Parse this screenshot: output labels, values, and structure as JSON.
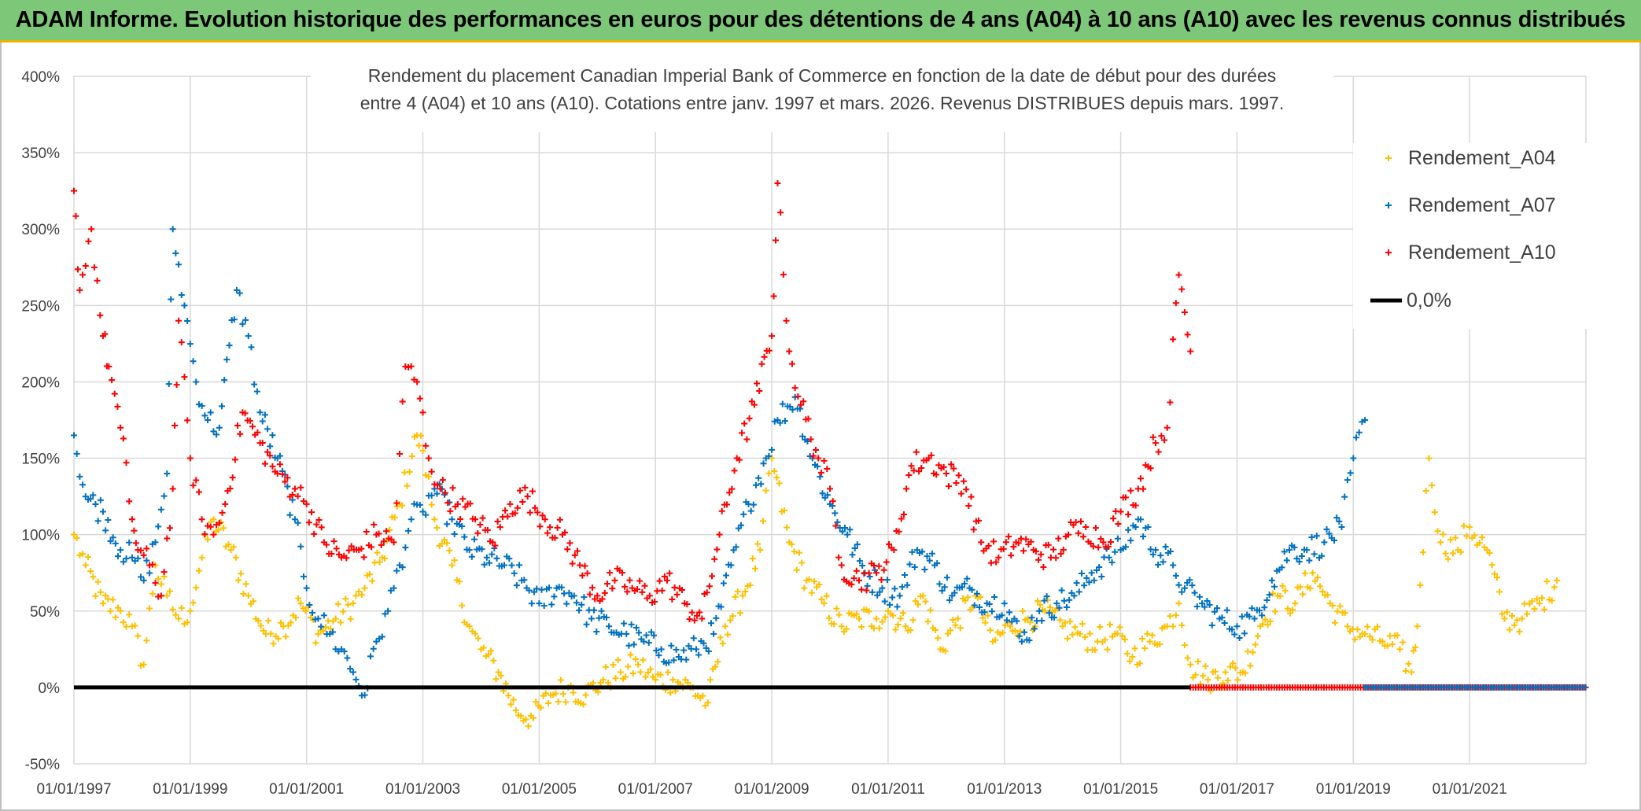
{
  "header": {
    "title": "ADAM Informe. Evolution historique des performances en euros pour des détentions de 4 ans (A04) à 10 ans (A10) avec les revenus connus distribués"
  },
  "chart_data": {
    "type": "scatter",
    "title_lines": [
      "Rendement du placement Canadian Imperial Bank of Commerce en fonction de la date de début pour des durées",
      "entre 4 (A04) et 10 ans (A10). Cotations entre janv. 1997 et mars. 2026. Revenus DISTRIBUES depuis mars. 1997."
    ],
    "xlabel": "",
    "ylabel": "",
    "x_unit": "year",
    "xlim": [
      1997.0,
      2023.0
    ],
    "ylim": [
      -50,
      400
    ],
    "x_tick_labels": [
      "01/01/1997",
      "01/01/1999",
      "01/01/2001",
      "01/01/2003",
      "01/01/2005",
      "01/01/2007",
      "01/01/2009",
      "01/01/2011",
      "01/01/2013",
      "01/01/2015",
      "01/01/2017",
      "01/01/2019",
      "01/01/2021"
    ],
    "x_tick_values": [
      1997,
      1999,
      2001,
      2003,
      2005,
      2007,
      2009,
      2011,
      2013,
      2015,
      2017,
      2019,
      2021
    ],
    "y_tick_labels": [
      "-50%",
      "0%",
      "50%",
      "100%",
      "150%",
      "200%",
      "250%",
      "300%",
      "350%",
      "400%"
    ],
    "y_tick_values": [
      -50,
      0,
      50,
      100,
      150,
      200,
      250,
      300,
      350,
      400
    ],
    "grid": true,
    "legend_position": "top-right",
    "marker": "+",
    "series": [
      {
        "name": "Rendement_A04",
        "color": "#ffc000",
        "x": [
          1997.0,
          1997.2,
          1997.5,
          1997.8,
          1998.0,
          1998.2,
          1998.4,
          1998.6,
          1998.8,
          1999.0,
          1999.2,
          1999.4,
          1999.7,
          2000.0,
          2000.3,
          2000.6,
          2000.9,
          2001.2,
          2001.5,
          2001.8,
          2002.0,
          2002.3,
          2002.6,
          2002.9,
          2003.0,
          2003.2,
          2003.5,
          2003.8,
          2004.0,
          2004.3,
          2004.6,
          2004.9,
          2005.2,
          2005.5,
          2005.8,
          2006.1,
          2006.4,
          2006.7,
          2007.0,
          2007.3,
          2007.6,
          2007.9,
          2008.2,
          2008.5,
          2008.8,
          2009.0,
          2009.3,
          2009.6,
          2009.9,
          2010.2,
          2010.5,
          2010.8,
          2011.0,
          2011.3,
          2011.6,
          2011.9,
          2012.2,
          2012.5,
          2012.8,
          2013.1,
          2013.4,
          2013.7,
          2014.0,
          2014.3,
          2014.6,
          2014.9,
          2015.2,
          2015.5,
          2015.8,
          2016.0,
          2016.2,
          2016.5,
          2016.8,
          2017.1,
          2017.4,
          2017.7,
          2018.0,
          2018.3,
          2018.6,
          2018.9,
          2019.2,
          2019.5,
          2019.8,
          2020.0,
          2020.1,
          2020.3,
          2020.5,
          2020.8,
          2021.0,
          2021.3,
          2021.6,
          2021.9,
          2022.2,
          2022.5
        ],
        "y": [
          100,
          80,
          55,
          50,
          40,
          15,
          80,
          60,
          45,
          50,
          85,
          110,
          90,
          60,
          35,
          40,
          55,
          35,
          45,
          55,
          65,
          85,
          120,
          165,
          155,
          110,
          80,
          40,
          25,
          10,
          -15,
          -20,
          -5,
          0,
          -5,
          5,
          10,
          15,
          5,
          5,
          0,
          -10,
          40,
          60,
          90,
          150,
          95,
          70,
          55,
          40,
          45,
          45,
          50,
          40,
          60,
          25,
          45,
          60,
          30,
          40,
          45,
          50,
          40,
          35,
          30,
          35,
          20,
          30,
          40,
          55,
          15,
          5,
          10,
          10,
          40,
          60,
          55,
          75,
          55,
          40,
          35,
          30,
          25,
          10,
          40,
          150,
          95,
          90,
          105,
          90,
          45,
          45,
          55,
          70
        ]
      },
      {
        "name": "Rendement_A07",
        "color": "#0070c0",
        "x": [
          1997.0,
          1997.2,
          1997.5,
          1997.8,
          1998.0,
          1998.2,
          1998.4,
          1998.6,
          1998.7,
          1998.9,
          1999.1,
          1999.3,
          1999.5,
          1999.8,
          2000.0,
          2000.2,
          2000.5,
          2000.8,
          2001.0,
          2001.2,
          2001.4,
          2001.6,
          2001.8,
          2002.0,
          2002.2,
          2002.4,
          2002.6,
          2002.8,
          2003.0,
          2003.2,
          2003.5,
          2003.8,
          2004.1,
          2004.4,
          2004.7,
          2005.0,
          2005.3,
          2005.6,
          2005.9,
          2006.2,
          2006.5,
          2006.8,
          2007.1,
          2007.4,
          2007.7,
          2008.0,
          2008.3,
          2008.6,
          2008.9,
          2009.1,
          2009.4,
          2009.7,
          2010.0,
          2010.3,
          2010.6,
          2010.9,
          2011.2,
          2011.5,
          2011.8,
          2012.1,
          2012.4,
          2012.7,
          2013.0,
          2013.3,
          2013.6,
          2013.9,
          2014.2,
          2014.5,
          2014.8,
          2015.0,
          2015.3,
          2015.6,
          2015.9,
          2016.1,
          2016.4,
          2016.7,
          2017.0,
          2017.3,
          2017.6,
          2017.9,
          2018.2,
          2018.5,
          2018.8,
          2019.0,
          2019.2
        ],
        "y": [
          165,
          125,
          115,
          90,
          85,
          70,
          95,
          140,
          300,
          250,
          200,
          175,
          170,
          260,
          230,
          180,
          150,
          110,
          65,
          45,
          35,
          25,
          10,
          -5,
          30,
          50,
          80,
          110,
          115,
          130,
          110,
          90,
          85,
          80,
          70,
          55,
          65,
          60,
          45,
          40,
          35,
          30,
          25,
          20,
          25,
          35,
          80,
          120,
          150,
          175,
          190,
          150,
          120,
          100,
          75,
          65,
          60,
          90,
          80,
          60,
          65,
          55,
          55,
          30,
          50,
          55,
          60,
          75,
          85,
          90,
          110,
          90,
          80,
          65,
          55,
          45,
          40,
          45,
          70,
          90,
          90,
          95,
          105,
          150,
          175
        ]
      },
      {
        "name": "Rendement_A10",
        "color": "#ff0000",
        "x": [
          1997.0,
          1997.1,
          1997.3,
          1997.5,
          1997.6,
          1997.8,
          1998.0,
          1998.1,
          1998.3,
          1998.5,
          1998.7,
          1998.8,
          1999.0,
          1999.2,
          1999.4,
          1999.6,
          1999.9,
          2000.2,
          2000.5,
          2000.8,
          2001.0,
          2001.3,
          2001.6,
          2001.9,
          2002.2,
          2002.5,
          2002.7,
          2002.9,
          2003.1,
          2003.3,
          2003.6,
          2003.9,
          2004.2,
          2004.5,
          2004.8,
          2005.1,
          2005.4,
          2005.7,
          2006.0,
          2006.3,
          2006.6,
          2006.9,
          2007.2,
          2007.5,
          2007.8,
          2008.1,
          2008.4,
          2008.7,
          2009.0,
          2009.1,
          2009.3,
          2009.5,
          2009.8,
          2010.0,
          2010.2,
          2010.5,
          2010.8,
          2011.1,
          2011.4,
          2011.7,
          2012.0,
          2012.3,
          2012.6,
          2012.9,
          2013.2,
          2013.5,
          2013.8,
          2014.1,
          2014.4,
          2014.7,
          2015.0,
          2015.3,
          2015.6,
          2015.8,
          2016.0,
          2016.2
        ],
        "y": [
          325,
          260,
          300,
          230,
          210,
          170,
          110,
          90,
          80,
          60,
          130,
          240,
          150,
          110,
          100,
          120,
          180,
          160,
          140,
          130,
          120,
          95,
          85,
          90,
          100,
          95,
          210,
          200,
          150,
          130,
          120,
          110,
          95,
          120,
          125,
          110,
          100,
          80,
          60,
          70,
          65,
          60,
          70,
          55,
          45,
          100,
          150,
          185,
          230,
          330,
          220,
          185,
          150,
          130,
          80,
          70,
          75,
          90,
          145,
          150,
          140,
          135,
          95,
          85,
          95,
          90,
          85,
          100,
          105,
          95,
          115,
          130,
          160,
          170,
          270,
          220
        ]
      },
      {
        "name": "0,0%",
        "color": "#000000",
        "type": "line",
        "x": [
          1997.0,
          2023.0
        ],
        "y": [
          0,
          0
        ]
      }
    ],
    "zero_bands": [
      {
        "series": "Rendement_A10",
        "x_from": 2016.2,
        "x_to": 2023.0,
        "y": 0
      },
      {
        "series": "Rendement_A07",
        "x_from": 2019.2,
        "x_to": 2023.0,
        "y": 0
      }
    ]
  }
}
